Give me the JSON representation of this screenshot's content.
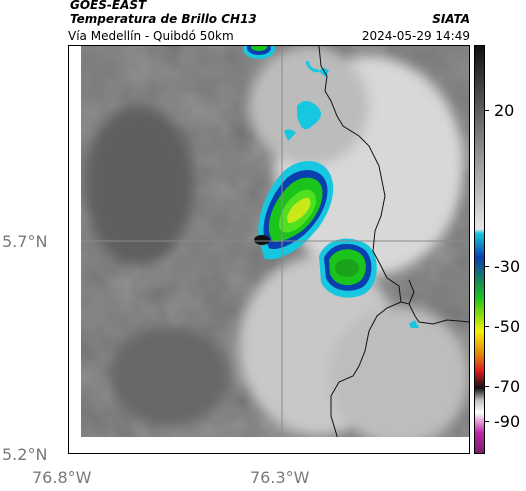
{
  "header": {
    "satellite": "GOES-EAST",
    "product": "Temperatura de Brillo CH13",
    "source": "SIATA",
    "region": "Vía Medellín - Quibdó 50km",
    "datetime": "2024-05-29 14:49"
  },
  "axes": {
    "y_labels": [
      "5.7°N",
      "5.2°N"
    ],
    "x_labels": [
      "76.8°W",
      "76.3°W"
    ]
  },
  "colorbar": {
    "tick_labels": [
      "20",
      "-30",
      "-50",
      "-70",
      "-90"
    ],
    "colors": {
      "warm_gray_top": "#222222",
      "cold_cyan": "#17c7df",
      "blue": "#0a3fb0",
      "green": "#1bc41b",
      "yellow": "#f2f20a",
      "red": "#d81b1b",
      "magenta": "#c026a8"
    }
  },
  "map": {
    "features": [
      "coastline-border-line",
      "grid-line-lat-5.7",
      "grid-line-lon-76.3"
    ],
    "dominant_colors": [
      "#6e6e6e",
      "#d9d9d9",
      "#17c7df",
      "#0a3fb0",
      "#4fe01f",
      "#e8f00a"
    ]
  }
}
